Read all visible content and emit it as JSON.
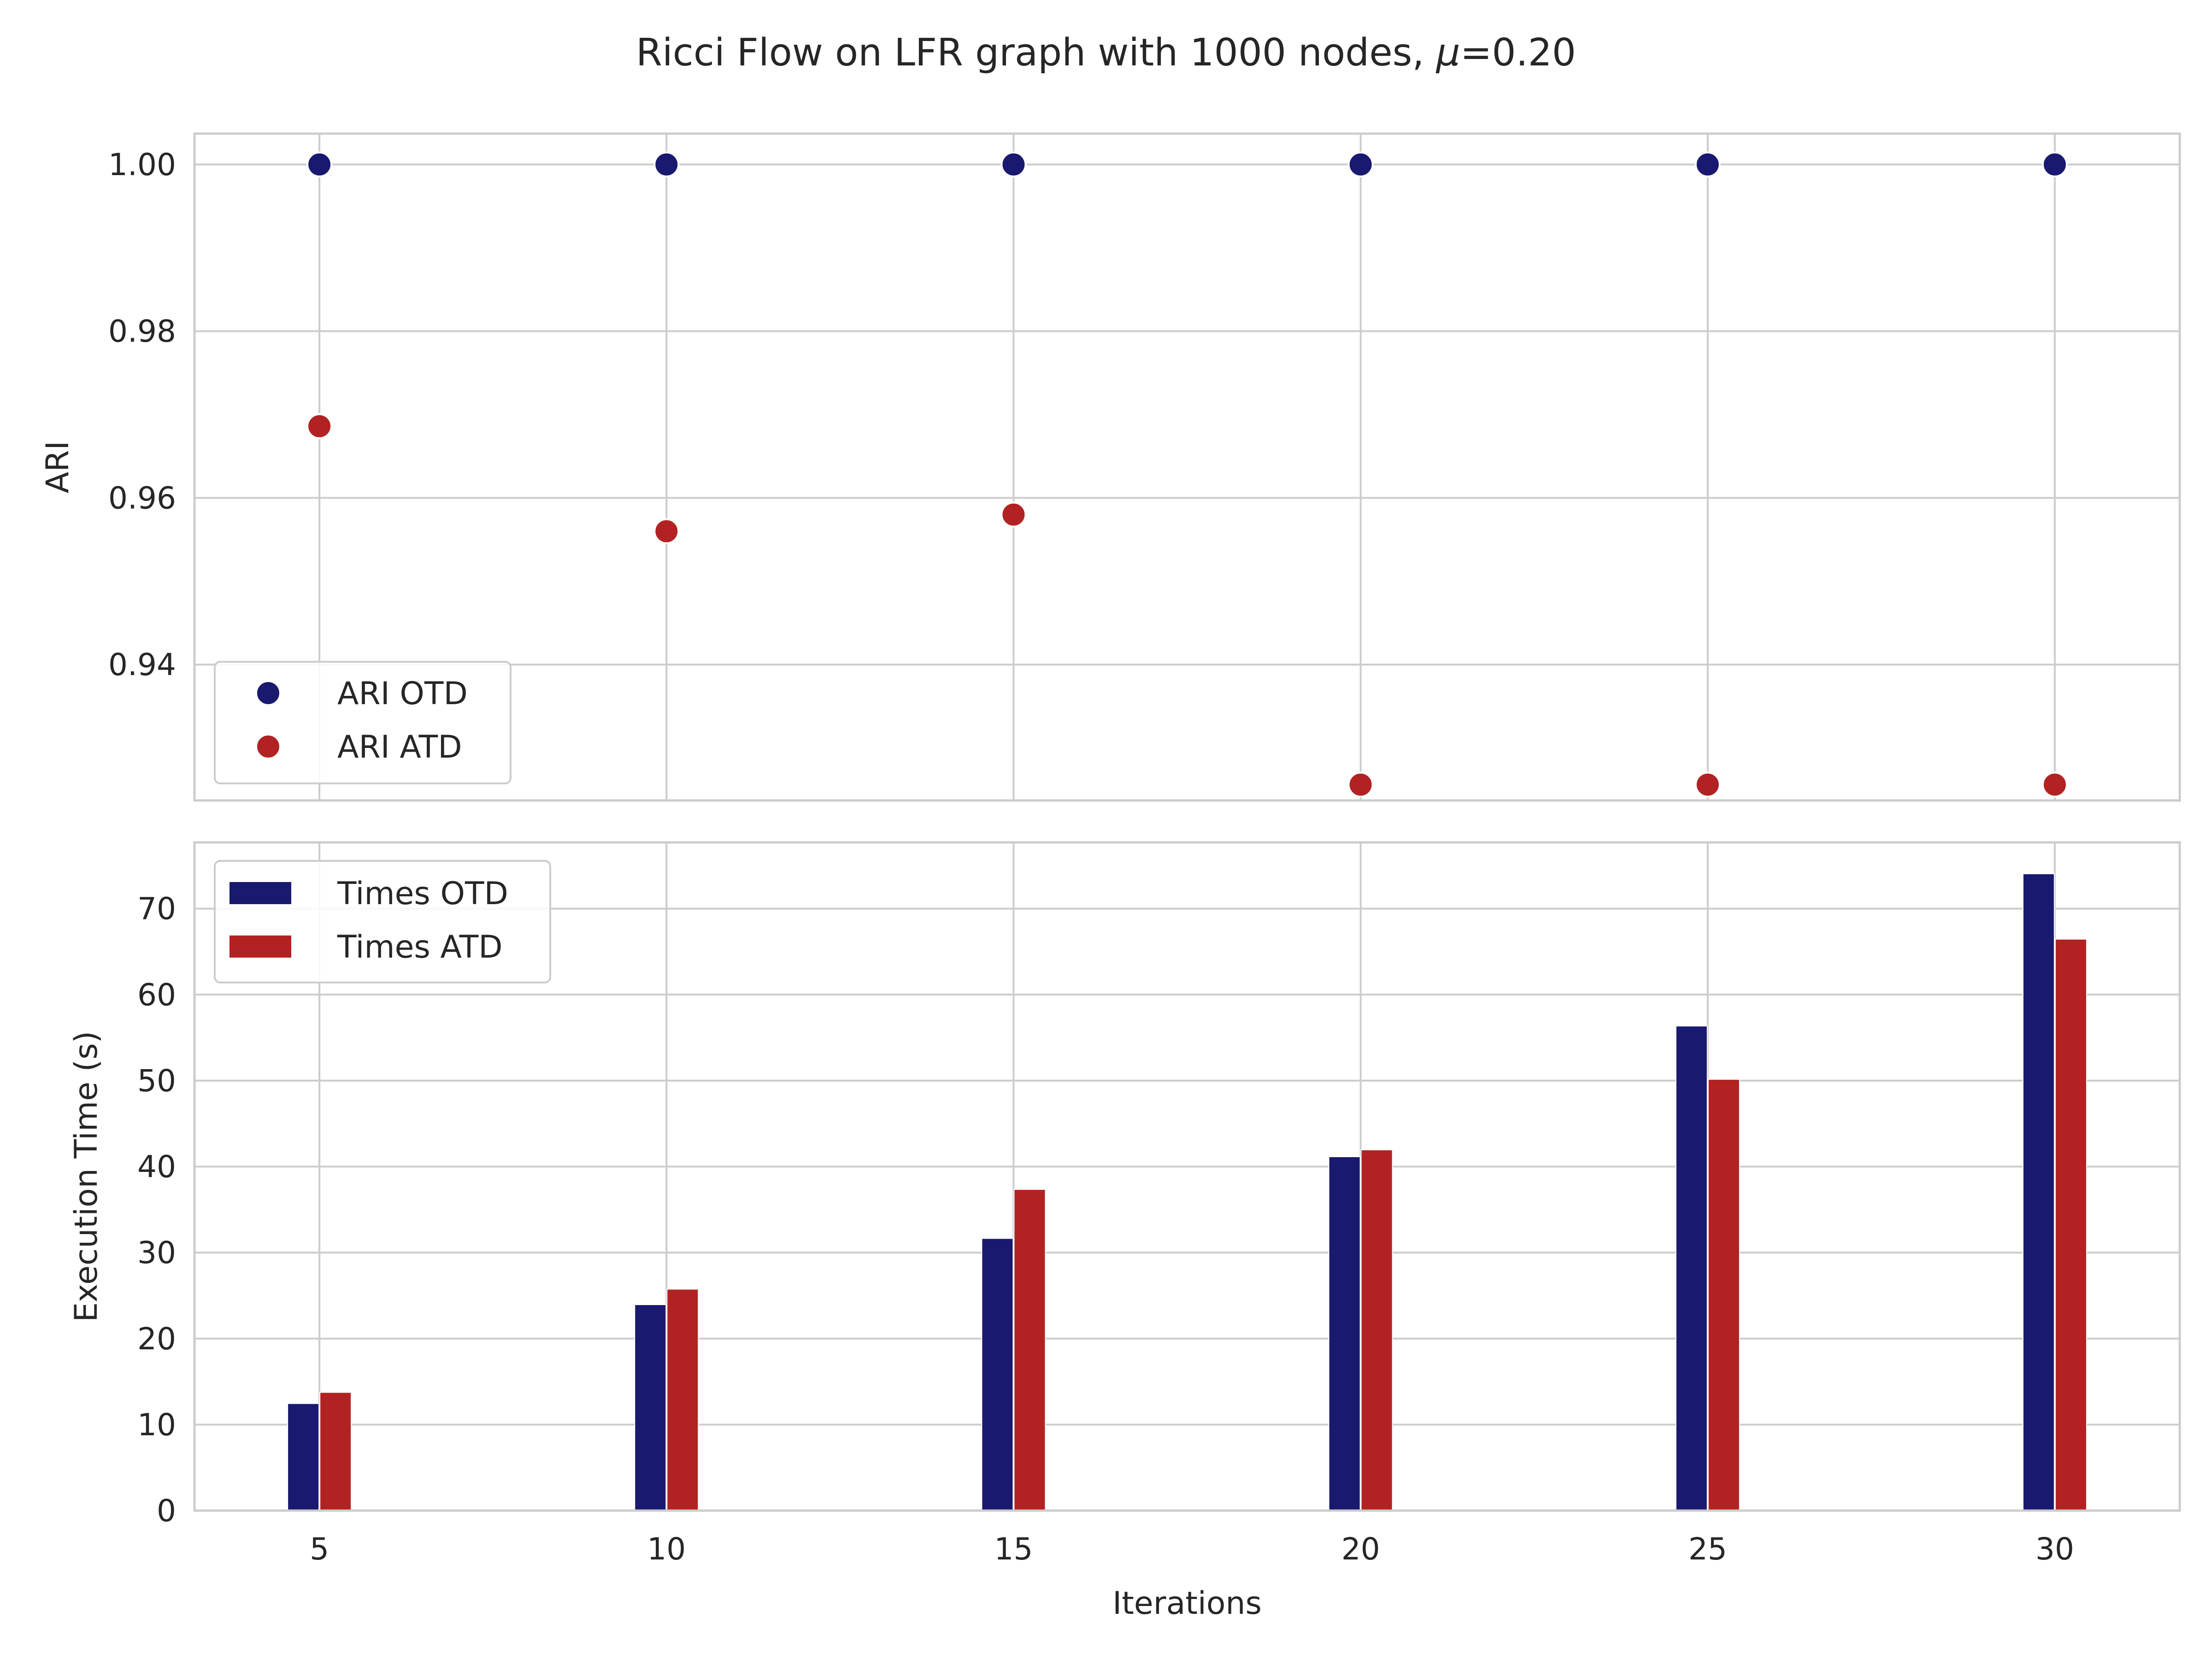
{
  "figure": {
    "title_prefix": "Ricci Flow on LFR graph with 1000 nodes, ",
    "title_mu": "μ",
    "title_suffix": "=0.20"
  },
  "colors": {
    "otd": "#191970",
    "atd": "#b22222",
    "grid": "#cccccc",
    "background": "#ffffff",
    "text": "#262626"
  },
  "chart_data": [
    {
      "type": "scatter",
      "ylabel": "ARI",
      "xlabel": "",
      "x": [
        5,
        10,
        15,
        20,
        25,
        30
      ],
      "series": [
        {
          "name": "ARI OTD",
          "values": [
            1.0,
            1.0,
            1.0,
            1.0,
            1.0,
            1.0
          ],
          "color": "#191970"
        },
        {
          "name": "ARI ATD",
          "values": [
            0.9686,
            0.956,
            0.958,
            0.9256,
            0.9256,
            0.9256
          ],
          "color": "#b22222"
        }
      ],
      "xlim": [
        3.2,
        31.8
      ],
      "ylim": [
        0.9237,
        1.0037
      ],
      "yticks": [
        "0.94",
        "0.96",
        "0.98",
        "1.00"
      ],
      "ytick_values": [
        0.94,
        0.96,
        0.98,
        1.0
      ],
      "grid": true,
      "legend_position": "lower-left"
    },
    {
      "type": "bar",
      "ylabel": "Execution Time (s)",
      "xlabel": "Iterations",
      "categories": [
        "5",
        "10",
        "15",
        "20",
        "25",
        "30"
      ],
      "x": [
        5,
        10,
        15,
        20,
        25,
        30
      ],
      "series": [
        {
          "name": "Times OTD",
          "values": [
            12.4,
            23.9,
            31.6,
            41.1,
            56.3,
            74.0
          ],
          "color": "#191970"
        },
        {
          "name": "Times ATD",
          "values": [
            13.7,
            25.7,
            37.3,
            41.9,
            50.1,
            66.4
          ],
          "color": "#b22222"
        }
      ],
      "xlim": [
        3.2,
        31.8
      ],
      "ylim": [
        0,
        77.7
      ],
      "yticks": [
        "0",
        "10",
        "20",
        "30",
        "40",
        "50",
        "60",
        "70"
      ],
      "ytick_values": [
        0,
        10,
        20,
        30,
        40,
        50,
        60,
        70
      ],
      "grid": true,
      "legend_position": "upper-left"
    }
  ]
}
